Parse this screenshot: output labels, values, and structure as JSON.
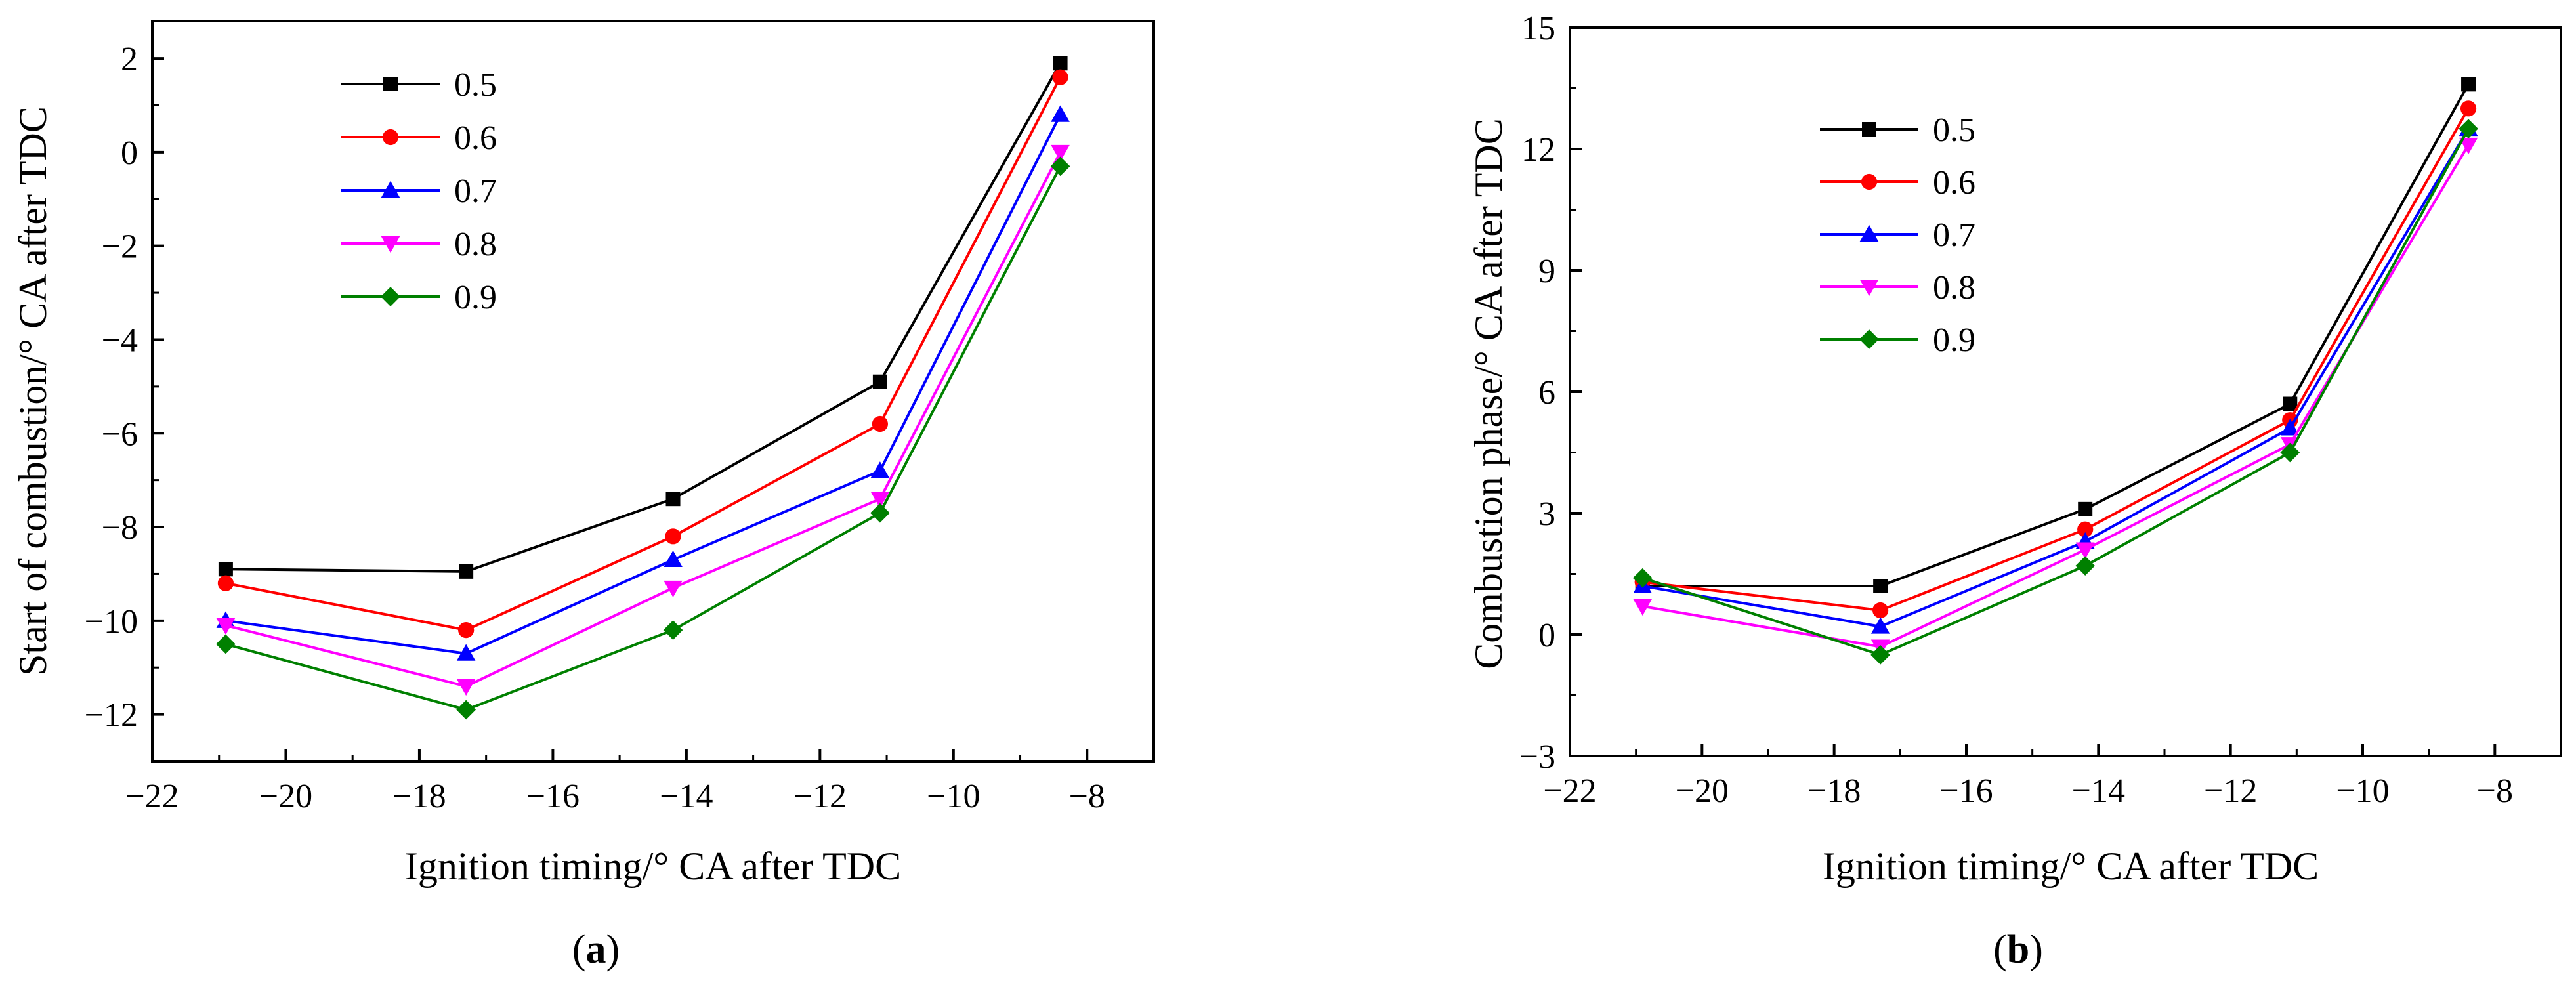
{
  "chart_data": [
    {
      "id": "a",
      "type": "line",
      "caption_open": "(",
      "caption_letter": "a",
      "caption_close": ")",
      "xlabel": "Ignition timing/° CA after TDC",
      "ylabel": "Start of combustion/° CA after TDC",
      "xlim": [
        -22,
        -7
      ],
      "ylim": [
        -13,
        2.8
      ],
      "xticks": [
        -22,
        -20,
        -18,
        -16,
        -14,
        -12,
        -10,
        -8
      ],
      "yticks": [
        -12,
        -10,
        -8,
        -6,
        -4,
        -2,
        0,
        2
      ],
      "x": [
        -20.9,
        -17.3,
        -14.2,
        -11.1,
        -8.4
      ],
      "series": [
        {
          "name": "0.5",
          "values": [
            -8.9,
            -8.95,
            -7.4,
            -4.9,
            1.9
          ]
        },
        {
          "name": "0.6",
          "values": [
            -9.2,
            -10.2,
            -8.2,
            -5.8,
            1.6
          ]
        },
        {
          "name": "0.7",
          "values": [
            -10.0,
            -10.7,
            -8.7,
            -6.8,
            0.8
          ]
        },
        {
          "name": "0.8",
          "values": [
            -10.1,
            -11.4,
            -9.3,
            -7.4,
            0.0
          ]
        },
        {
          "name": "0.9",
          "values": [
            -10.5,
            -11.9,
            -10.2,
            -7.7,
            -0.3
          ]
        }
      ],
      "legend": "top-left"
    },
    {
      "id": "b",
      "type": "line",
      "caption_open": "(",
      "caption_letter": "b",
      "caption_close": ")",
      "xlabel": "Ignition timing/° CA after TDC",
      "ylabel": "Combustion phase/° CA after TDC",
      "xlim": [
        -22,
        -7
      ],
      "ylim": [
        -3,
        15
      ],
      "xticks": [
        -22,
        -20,
        -18,
        -16,
        -14,
        -12,
        -10,
        -8
      ],
      "yticks": [
        -3,
        0,
        3,
        6,
        9,
        12,
        15
      ],
      "x": [
        -20.9,
        -17.3,
        -14.2,
        -11.1,
        -8.4
      ],
      "series": [
        {
          "name": "0.5",
          "values": [
            1.2,
            1.2,
            3.1,
            5.7,
            13.6
          ]
        },
        {
          "name": "0.6",
          "values": [
            1.3,
            0.6,
            2.6,
            5.3,
            13.0
          ]
        },
        {
          "name": "0.7",
          "values": [
            1.2,
            0.2,
            2.3,
            5.1,
            12.5
          ]
        },
        {
          "name": "0.8",
          "values": [
            0.7,
            -0.3,
            2.1,
            4.7,
            12.1
          ]
        },
        {
          "name": "0.9",
          "values": [
            1.4,
            -0.5,
            1.7,
            4.5,
            12.5
          ]
        }
      ],
      "legend": "top-left"
    }
  ],
  "series_style": [
    {
      "color": "#000000",
      "marker": "square"
    },
    {
      "color": "#ff0000",
      "marker": "circle"
    },
    {
      "color": "#0000ff",
      "marker": "triangle-up"
    },
    {
      "color": "#ff00ff",
      "marker": "triangle-down"
    },
    {
      "color": "#008000",
      "marker": "diamond"
    }
  ]
}
